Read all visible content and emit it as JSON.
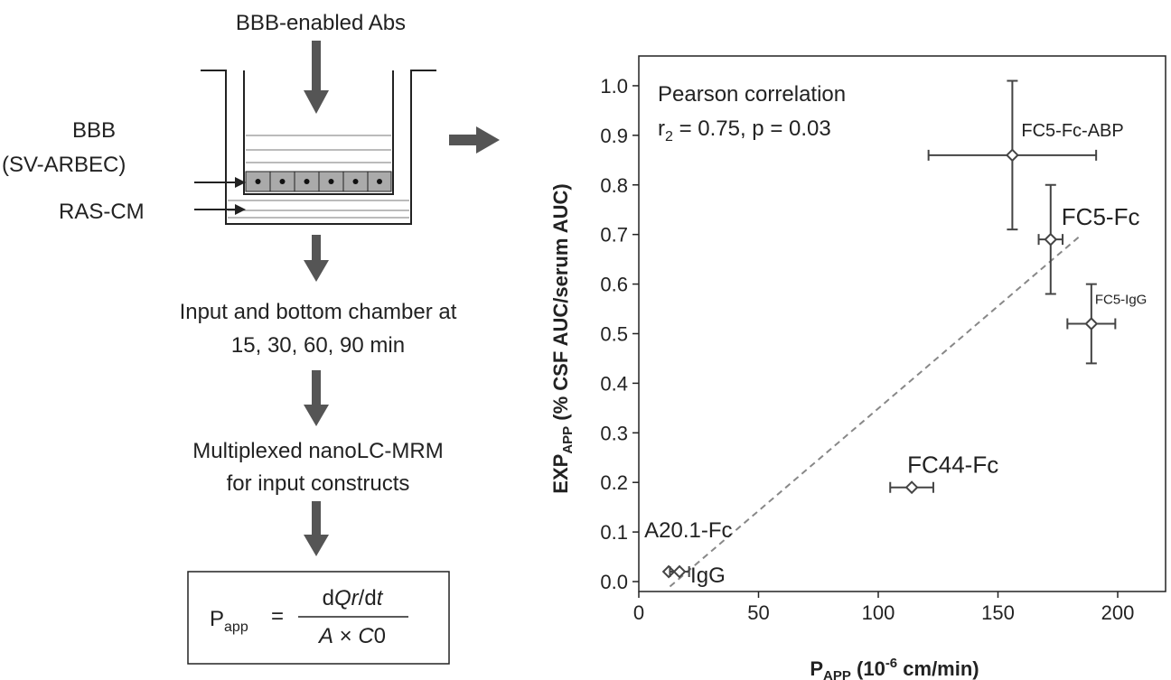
{
  "diagram": {
    "top_label": "BBB-enabled Abs",
    "bbb_label": "BBB",
    "bbb_cells": "(SV-ARBEC)",
    "medium_label": "RAS-CM",
    "step1": [
      "Input and bottom chamber at",
      "15, 30, 60, 90 min"
    ],
    "step2": [
      "Multiplexed nanoLC-MRM",
      "for input constructs"
    ],
    "formula": {
      "lhs": "P",
      "lhs_sub": "app",
      "eq": "=",
      "num": [
        "d",
        "Qr",
        "/d",
        "t"
      ],
      "den": [
        "A",
        " × ",
        "C",
        "0"
      ]
    }
  },
  "chart_data": {
    "type": "scatter",
    "annotations": [
      "Pearson correlation",
      {
        "pre": "r",
        "sub": "2",
        "post": " = 0.75, p = 0.03"
      }
    ],
    "xlabel": {
      "main": "P",
      "sub": "APP",
      "mid": "  (10",
      "sup": "-6",
      "post": " cm/min)"
    },
    "ylabel": {
      "main": "EXP",
      "sub": "APP",
      "post": "  (% CSF AUC/serum AUC)"
    },
    "xlim": [
      0,
      220
    ],
    "ylim": [
      -0.02,
      1.06
    ],
    "xticks": [
      0,
      50,
      100,
      150,
      200
    ],
    "yticks": [
      {
        "value": 0,
        "label": "0.0"
      },
      {
        "value": 0.1,
        "label": "0.1"
      },
      {
        "value": 0.2,
        "label": "0.2"
      },
      {
        "value": 0.3,
        "label": "0.3"
      },
      {
        "value": 0.4,
        "label": "0.4"
      },
      {
        "value": 0.5,
        "label": "0.5"
      },
      {
        "value": 0.6,
        "label": "0.6"
      },
      {
        "value": 0.7,
        "label": "0.7"
      },
      {
        "value": 0.8,
        "label": "0.8"
      },
      {
        "value": 0.9,
        "label": "0.9"
      },
      {
        "value": 1.0,
        "label": "1.0"
      }
    ],
    "color": "#444444",
    "trendline": {
      "x": [
        13,
        185
      ],
      "values": [
        -0.01,
        0.7
      ],
      "color": "#888888"
    },
    "series": [
      {
        "name": "FC5-Fc-ABP",
        "x": [
          156
        ],
        "values": [
          0.86
        ],
        "xerr": [
          35
        ],
        "yerr": [
          0.15
        ]
      },
      {
        "name": "FC5-Fc",
        "x": [
          172
        ],
        "values": [
          0.69
        ],
        "xerr": [
          5
        ],
        "yerr": [
          0.11
        ]
      },
      {
        "name": "FC5-IgG",
        "x": [
          189
        ],
        "values": [
          0.52
        ],
        "xerr": [
          10
        ],
        "yerr": [
          0.08
        ]
      },
      {
        "name": "FC44-Fc",
        "x": [
          114
        ],
        "values": [
          0.19
        ],
        "xerr": [
          9
        ]
      },
      {
        "name": "A20.1-Fc",
        "x": [
          12.5
        ],
        "values": [
          0.02
        ]
      },
      {
        "name": "IgG",
        "x": [
          17
        ],
        "values": [
          0.02
        ],
        "xerr": [
          4
        ]
      }
    ]
  }
}
